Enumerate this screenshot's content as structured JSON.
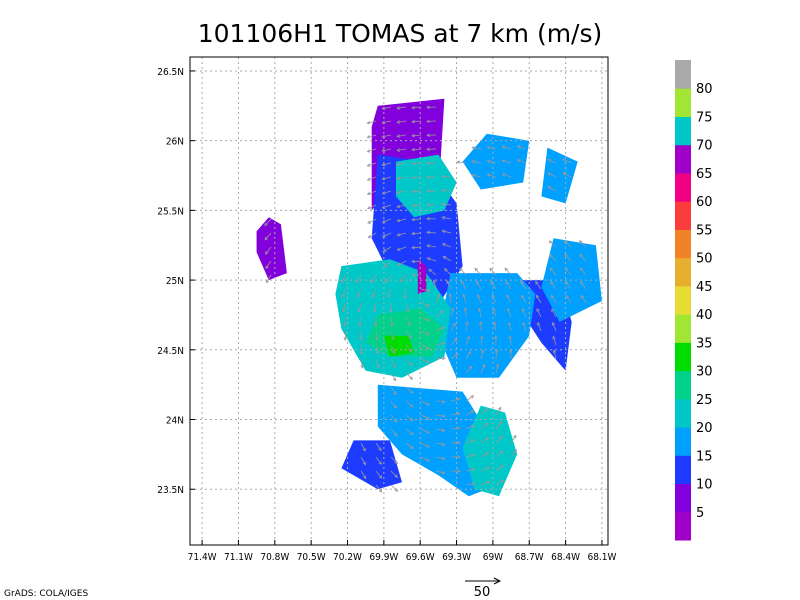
{
  "chart_data": {
    "type": "heatmap",
    "title": "101106H1 TOMAS at 7 km (m/s)",
    "x_ticks": [
      "71.4W",
      "71.1W",
      "70.8W",
      "70.5W",
      "70.2W",
      "69.9W",
      "69.6W",
      "69.3W",
      "69W",
      "68.7W",
      "68.4W",
      "68.1W"
    ],
    "y_ticks": [
      "23.5N",
      "24N",
      "24.5N",
      "25N",
      "25.5N",
      "26N",
      "26.5N"
    ],
    "xlim": [
      -71.5,
      -68.05
    ],
    "ylim": [
      23.1,
      26.6
    ],
    "grid": true,
    "colorbar": {
      "labels": [
        "5",
        "10",
        "15",
        "20",
        "25",
        "30",
        "35",
        "40",
        "45",
        "50",
        "55",
        "60",
        "65",
        "70",
        "75",
        "80"
      ],
      "colors": [
        "#a000c8",
        "#8200dc",
        "#1e3cff",
        "#00a0ff",
        "#00c8c8",
        "#00d28c",
        "#00dc00",
        "#a0e632",
        "#e6dc32",
        "#e6af2d",
        "#f08228",
        "#fa3c3c",
        "#f00082",
        "#a000c8",
        "#00c8c8",
        "#a0e632",
        "#aaaaaa"
      ]
    },
    "wind_regions": [
      {
        "speed_class": "10",
        "color": "#8200dc",
        "polygon": [
          [
            -69.95,
            26.25
          ],
          [
            -69.4,
            26.3
          ],
          [
            -69.45,
            25.6
          ],
          [
            -69.75,
            25.75
          ],
          [
            -70.0,
            25.5
          ],
          [
            -70.0,
            26.1
          ]
        ]
      },
      {
        "speed_class": "10",
        "color": "#8200dc",
        "polygon": [
          [
            -70.85,
            25.45
          ],
          [
            -70.75,
            25.4
          ],
          [
            -70.7,
            25.05
          ],
          [
            -70.85,
            25.0
          ],
          [
            -70.95,
            25.2
          ],
          [
            -70.95,
            25.35
          ]
        ]
      },
      {
        "speed_class": "15",
        "color": "#1e3cff",
        "polygon": [
          [
            -69.95,
            25.9
          ],
          [
            -69.55,
            25.85
          ],
          [
            -69.3,
            25.55
          ],
          [
            -69.25,
            25.1
          ],
          [
            -69.5,
            24.75
          ],
          [
            -69.8,
            24.95
          ],
          [
            -70.0,
            25.3
          ]
        ]
      },
      {
        "speed_class": "15",
        "color": "#1e3cff",
        "polygon": [
          [
            -70.15,
            23.85
          ],
          [
            -69.85,
            23.85
          ],
          [
            -69.75,
            23.55
          ],
          [
            -69.95,
            23.5
          ],
          [
            -70.25,
            23.65
          ]
        ]
      },
      {
        "speed_class": "15",
        "color": "#1e3cff",
        "polygon": [
          [
            -68.75,
            25.0
          ],
          [
            -68.45,
            25.0
          ],
          [
            -68.35,
            24.7
          ],
          [
            -68.4,
            24.35
          ],
          [
            -68.6,
            24.55
          ],
          [
            -68.75,
            24.75
          ]
        ]
      },
      {
        "speed_class": "20",
        "color": "#00a0ff",
        "polygon": [
          [
            -69.35,
            25.05
          ],
          [
            -68.8,
            25.05
          ],
          [
            -68.65,
            24.9
          ],
          [
            -68.7,
            24.6
          ],
          [
            -68.95,
            24.3
          ],
          [
            -69.3,
            24.3
          ],
          [
            -69.45,
            24.6
          ]
        ]
      },
      {
        "speed_class": "20",
        "color": "#00a0ff",
        "polygon": [
          [
            -69.05,
            26.05
          ],
          [
            -68.7,
            26.0
          ],
          [
            -68.75,
            25.7
          ],
          [
            -69.1,
            25.65
          ],
          [
            -69.25,
            25.85
          ]
        ]
      },
      {
        "speed_class": "20",
        "color": "#00a0ff",
        "polygon": [
          [
            -68.55,
            25.95
          ],
          [
            -68.3,
            25.85
          ],
          [
            -68.4,
            25.55
          ],
          [
            -68.6,
            25.6
          ]
        ]
      },
      {
        "speed_class": "20",
        "color": "#00a0ff",
        "polygon": [
          [
            -68.5,
            25.3
          ],
          [
            -68.15,
            25.25
          ],
          [
            -68.1,
            24.85
          ],
          [
            -68.45,
            24.7
          ],
          [
            -68.6,
            24.95
          ]
        ]
      },
      {
        "speed_class": "20",
        "color": "#00a0ff",
        "polygon": [
          [
            -69.95,
            24.25
          ],
          [
            -69.25,
            24.2
          ],
          [
            -69.0,
            23.85
          ],
          [
            -68.9,
            23.55
          ],
          [
            -69.2,
            23.45
          ],
          [
            -69.45,
            23.6
          ],
          [
            -69.75,
            23.75
          ],
          [
            -69.95,
            23.95
          ]
        ]
      },
      {
        "speed_class": "25",
        "color": "#00c8c8",
        "polygon": [
          [
            -70.25,
            25.1
          ],
          [
            -69.85,
            25.15
          ],
          [
            -69.55,
            25.05
          ],
          [
            -69.35,
            24.8
          ],
          [
            -69.4,
            24.45
          ],
          [
            -69.75,
            24.3
          ],
          [
            -70.05,
            24.35
          ],
          [
            -70.25,
            24.65
          ],
          [
            -70.3,
            24.9
          ]
        ]
      },
      {
        "speed_class": "25",
        "color": "#00c8c8",
        "polygon": [
          [
            -69.8,
            25.85
          ],
          [
            -69.45,
            25.9
          ],
          [
            -69.3,
            25.7
          ],
          [
            -69.4,
            25.5
          ],
          [
            -69.65,
            25.45
          ],
          [
            -69.8,
            25.6
          ]
        ]
      },
      {
        "speed_class": "25",
        "color": "#00c8c8",
        "polygon": [
          [
            -69.1,
            24.1
          ],
          [
            -68.9,
            24.05
          ],
          [
            -68.8,
            23.75
          ],
          [
            -68.95,
            23.45
          ],
          [
            -69.15,
            23.5
          ],
          [
            -69.25,
            23.8
          ]
        ]
      },
      {
        "speed_class": "30",
        "color": "#00d28c",
        "polygon": [
          [
            -69.95,
            24.75
          ],
          [
            -69.6,
            24.8
          ],
          [
            -69.4,
            24.65
          ],
          [
            -69.5,
            24.45
          ],
          [
            -69.85,
            24.45
          ],
          [
            -70.05,
            24.55
          ]
        ]
      },
      {
        "speed_class": "35",
        "color": "#00dc00",
        "polygon": [
          [
            -69.9,
            24.6
          ],
          [
            -69.7,
            24.6
          ],
          [
            -69.65,
            24.48
          ],
          [
            -69.85,
            24.45
          ]
        ]
      },
      {
        "speed_class": "5",
        "color": "#a000c8",
        "polygon": [
          [
            -69.62,
            25.15
          ],
          [
            -69.55,
            25.1
          ],
          [
            -69.55,
            24.92
          ],
          [
            -69.62,
            24.9
          ]
        ]
      }
    ],
    "reference_vector_label": "50"
  },
  "credit": "GrADS: COLA/IGES"
}
